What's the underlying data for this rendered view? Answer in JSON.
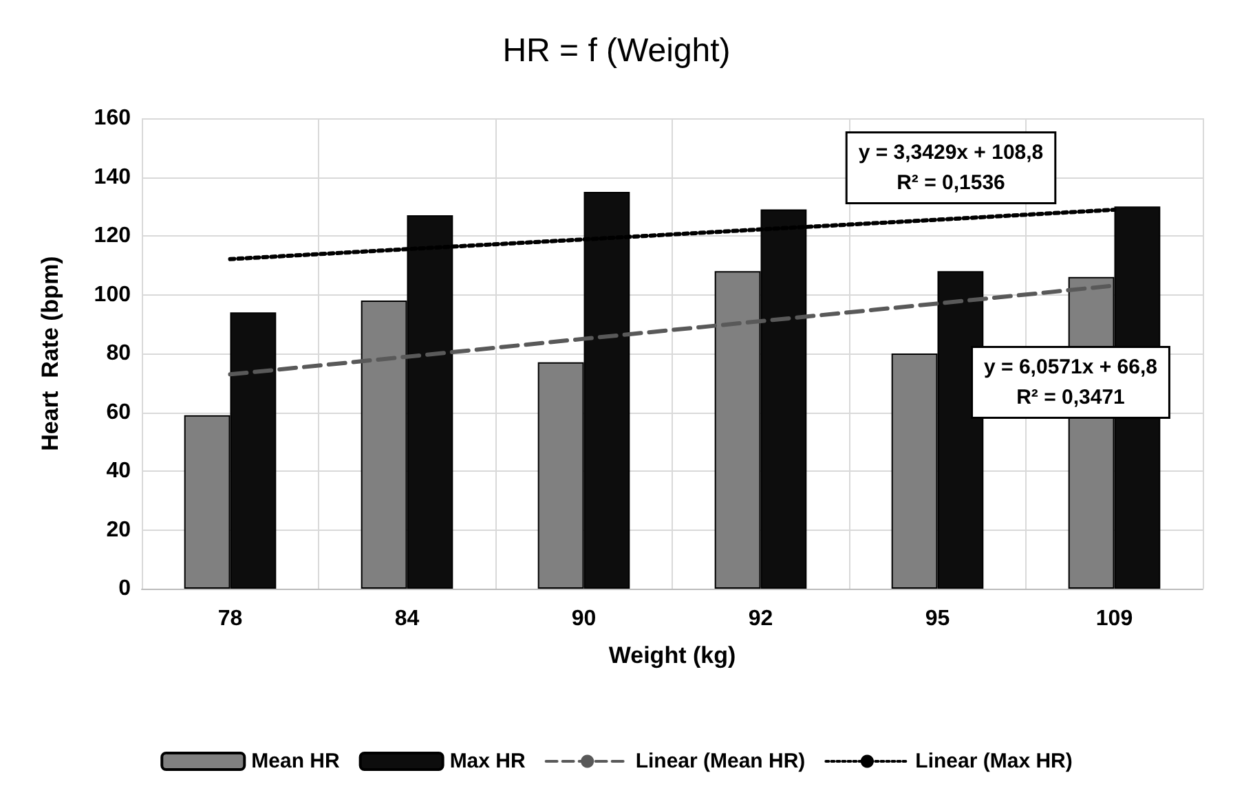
{
  "chart_data": {
    "type": "bar",
    "title": "HR = f (Weight)",
    "xlabel": "Weight (kg)",
    "ylabel": "Heart  Rate (bpm)",
    "categories": [
      "78",
      "84",
      "90",
      "92",
      "95",
      "109"
    ],
    "series": [
      {
        "name": "Mean HR",
        "color": "#808080",
        "values": [
          59,
          98,
          77,
          108,
          80,
          106
        ]
      },
      {
        "name": "Max HR",
        "color": "#0d0d0d",
        "values": [
          94,
          127,
          135,
          129,
          108,
          130
        ]
      },
      {
        "name": "Linear (Mean HR)",
        "type": "line",
        "line_style": "dashed",
        "color": "#595959",
        "values": [
          72.9,
          78.9,
          85.0,
          91.0,
          97.0,
          103.1
        ]
      },
      {
        "name": "Linear (Max HR)",
        "type": "line",
        "line_style": "dotted",
        "color": "#000000",
        "values": [
          112.1,
          115.5,
          118.8,
          122.2,
          125.5,
          128.9
        ]
      }
    ],
    "annotations": [
      "y = 3,3429x + 108,8\nR² = 0,1536",
      "y = 6,0571x + 66,8\nR² = 0,3471"
    ],
    "ylim": [
      0,
      160
    ],
    "yticks": [
      0,
      20,
      40,
      60,
      80,
      100,
      120,
      140,
      160
    ],
    "grid": true,
    "legend": "bottom",
    "marker": "none"
  }
}
